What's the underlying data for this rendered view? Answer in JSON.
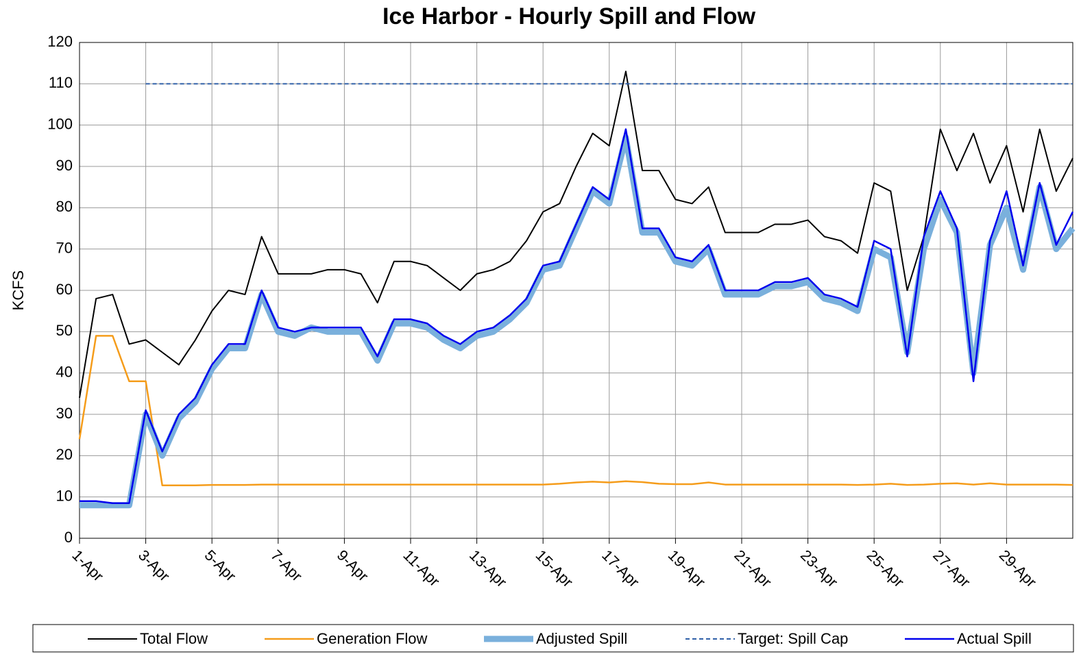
{
  "chart_data": {
    "type": "line",
    "title": "Ice Harbor - Hourly Spill and Flow",
    "y_label": "KCFS",
    "x": [
      1,
      1.5,
      2,
      2.5,
      3,
      3.5,
      4,
      4.5,
      5,
      5.5,
      6,
      6.5,
      7,
      7.5,
      8,
      8.5,
      9,
      9.5,
      10,
      10.5,
      11,
      11.5,
      12,
      12.5,
      13,
      13.5,
      14,
      14.5,
      15,
      15.5,
      16,
      16.5,
      17,
      17.5,
      18,
      18.5,
      19,
      19.5,
      20,
      20.5,
      21,
      21.5,
      22,
      22.5,
      23,
      23.5,
      24,
      24.5,
      25,
      25.5,
      26,
      26.5,
      27,
      27.5,
      28,
      28.5,
      29,
      29.5,
      30,
      30.5,
      31
    ],
    "xlim": [
      1,
      31
    ],
    "xticks": [
      {
        "value": 1,
        "label": "1-Apr"
      },
      {
        "value": 3,
        "label": "3-Apr"
      },
      {
        "value": 5,
        "label": "5-Apr"
      },
      {
        "value": 7,
        "label": "7-Apr"
      },
      {
        "value": 9,
        "label": "9-Apr"
      },
      {
        "value": 11,
        "label": "11-Apr"
      },
      {
        "value": 13,
        "label": "13-Apr"
      },
      {
        "value": 15,
        "label": "15-Apr"
      },
      {
        "value": 17,
        "label": "17-Apr"
      },
      {
        "value": 19,
        "label": "19-Apr"
      },
      {
        "value": 21,
        "label": "21-Apr"
      },
      {
        "value": 23,
        "label": "23-Apr"
      },
      {
        "value": 25,
        "label": "25-Apr"
      },
      {
        "value": 27,
        "label": "27-Apr"
      },
      {
        "value": 29,
        "label": "29-Apr"
      }
    ],
    "ylim": [
      0,
      120
    ],
    "yticks": [
      0,
      10,
      20,
      30,
      40,
      50,
      60,
      70,
      80,
      90,
      100,
      110,
      120
    ],
    "grid": true,
    "series": [
      {
        "name": "Total Flow",
        "color": "#000000",
        "width": 2,
        "values": [
          34,
          58,
          59,
          47,
          48,
          45,
          42,
          48,
          55,
          60,
          59,
          73,
          64,
          64,
          64,
          65,
          65,
          64,
          57,
          67,
          67,
          66,
          63,
          60,
          64,
          65,
          67,
          72,
          79,
          81,
          90,
          98,
          95,
          113,
          89,
          89,
          82,
          81,
          85,
          74,
          74,
          74,
          76,
          76,
          77,
          73,
          72,
          69,
          86,
          84,
          60,
          73,
          99,
          89,
          98,
          86,
          95,
          79,
          99,
          84,
          92
        ]
      },
      {
        "name": "Generation Flow",
        "color": "#f59c1a",
        "width": 2.5,
        "values": [
          24,
          49,
          49,
          38,
          38,
          12.8,
          12.8,
          12.8,
          12.9,
          12.9,
          12.9,
          13,
          13,
          13,
          13,
          13,
          13,
          13,
          13,
          13,
          13,
          13,
          13,
          13,
          13,
          13,
          13,
          13,
          13,
          13.2,
          13.5,
          13.7,
          13.5,
          13.8,
          13.6,
          13.2,
          13.1,
          13.1,
          13.5,
          13,
          13,
          13,
          13,
          13,
          13,
          13,
          13,
          12.9,
          13,
          13.2,
          12.9,
          13,
          13.2,
          13.3,
          13,
          13.3,
          13,
          13,
          13,
          13,
          12.9
        ]
      },
      {
        "name": "Adjusted Spill",
        "color": "#7ab0dc",
        "width": 9,
        "values": [
          8,
          8,
          8,
          8,
          30,
          20,
          29,
          33,
          41,
          46,
          46,
          59,
          50,
          49,
          51,
          50,
          50,
          50,
          43,
          52,
          52,
          51,
          48,
          46,
          49,
          50,
          53,
          57,
          65,
          66,
          75,
          84,
          81,
          97,
          74,
          74,
          67,
          66,
          70,
          59,
          59,
          59,
          61,
          61,
          62,
          58,
          57,
          55,
          70,
          68,
          45,
          70,
          82,
          74,
          40,
          71,
          80,
          65,
          85,
          70,
          75
        ]
      },
      {
        "name": "Target: Spill Cap",
        "color": "#2f5fa8",
        "width": 2,
        "dash": "6,4",
        "values": [
          null,
          null,
          null,
          null,
          110,
          110,
          110,
          110,
          110,
          110,
          110,
          110,
          110,
          110,
          110,
          110,
          110,
          110,
          110,
          110,
          110,
          110,
          110,
          110,
          110,
          110,
          110,
          110,
          110,
          110,
          110,
          110,
          110,
          110,
          110,
          110,
          110,
          110,
          110,
          110,
          110,
          110,
          110,
          110,
          110,
          110,
          110,
          110,
          110,
          110,
          110,
          110,
          110,
          110,
          110,
          110,
          110,
          110,
          110,
          110,
          110
        ]
      },
      {
        "name": "Actual Spill",
        "color": "#0000ee",
        "width": 2.5,
        "values": [
          9,
          9,
          8.5,
          8.5,
          31,
          21,
          30,
          34,
          42,
          47,
          47,
          60,
          51,
          50,
          51,
          51,
          51,
          51,
          44,
          53,
          53,
          52,
          49,
          47,
          50,
          51,
          54,
          58,
          66,
          67,
          76,
          85,
          82,
          99,
          75,
          75,
          68,
          67,
          71,
          60,
          60,
          60,
          62,
          62,
          63,
          59,
          58,
          56,
          72,
          70,
          44,
          73,
          84,
          75,
          38,
          72,
          84,
          66,
          86,
          71,
          79
        ]
      }
    ]
  }
}
